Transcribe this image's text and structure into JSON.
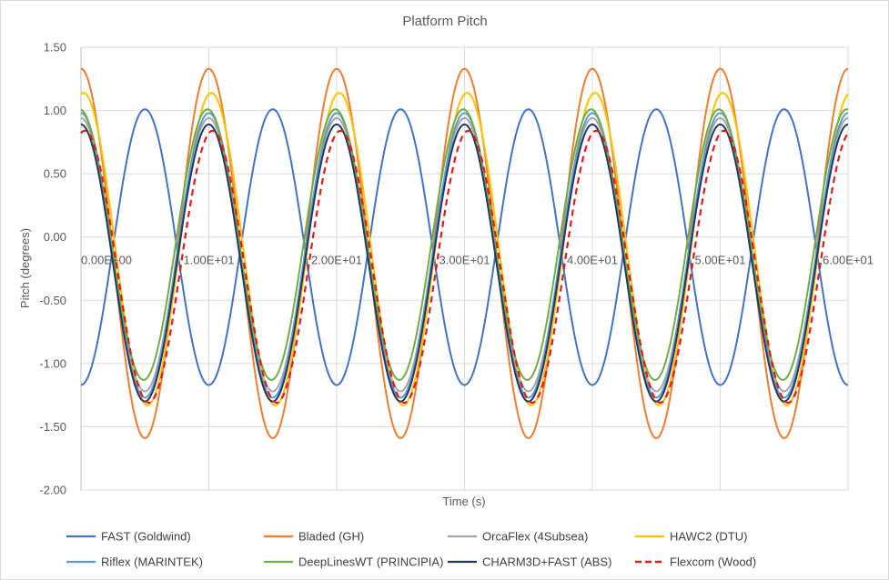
{
  "chart_data": {
    "type": "line",
    "title": "Platform Pitch",
    "xlabel": "Time (s)",
    "ylabel": "Pitch (degrees)",
    "xlim": [
      0,
      60
    ],
    "ylim": [
      -2.0,
      1.5
    ],
    "x_ticks": [
      0,
      10,
      20,
      30,
      40,
      50,
      60
    ],
    "x_tick_labels": [
      "0.00E+00",
      "1.00E+01",
      "2.00E+01",
      "3.00E+01",
      "4.00E+01",
      "5.00E+01",
      "6.00E+01"
    ],
    "y_ticks": [
      1.5,
      1.0,
      0.5,
      0.0,
      -0.5,
      -1.0,
      -1.5,
      -2.0
    ],
    "y_tick_labels": [
      "1.50",
      "1.00",
      "0.50",
      "0.00",
      "-0.50",
      "-1.00",
      "-1.50",
      "-2.00"
    ],
    "grid": true,
    "legend_position": "bottom",
    "period": 10,
    "series": [
      {
        "name": "FAST (Goldwind)",
        "color": "#4472C4",
        "dash": "solid",
        "max": 1.01,
        "min": -1.17,
        "peak_time": 5.0
      },
      {
        "name": "Bladed (GH)",
        "color": "#ED7D31",
        "dash": "solid",
        "max": 1.33,
        "min": -1.59,
        "peak_time": 10.0
      },
      {
        "name": "OrcaFlex (4Subsea)",
        "color": "#A5A5A5",
        "dash": "solid",
        "max": 0.94,
        "min": -1.22,
        "peak_time": 10.0
      },
      {
        "name": "HAWC2 (DTU)",
        "color": "#FFC000",
        "dash": "solid",
        "max": 1.14,
        "min": -1.33,
        "peak_time": 10.2
      },
      {
        "name": "Riflex (MARINTEK)",
        "color": "#5B9BD5",
        "dash": "solid",
        "max": 0.98,
        "min": -1.27,
        "peak_time": 10.0
      },
      {
        "name": "DeepLinesWT (PRINCIPIA)",
        "color": "#70AD47",
        "dash": "solid",
        "max": 1.01,
        "min": -1.13,
        "peak_time": 9.9
      },
      {
        "name": "CHARM3D+FAST (ABS)",
        "color": "#1F3864",
        "dash": "solid",
        "max": 0.89,
        "min": -1.3,
        "peak_time": 10.0
      },
      {
        "name": "Flexcom (Wood)",
        "color": "#E31A1C",
        "dash": "dashed",
        "max": 0.84,
        "min": -1.31,
        "peak_time": 10.3
      }
    ]
  }
}
